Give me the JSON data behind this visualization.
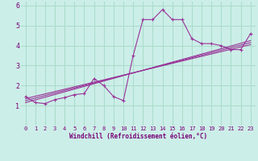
{
  "x": [
    0,
    1,
    2,
    3,
    4,
    5,
    6,
    7,
    8,
    9,
    10,
    11,
    12,
    13,
    14,
    15,
    16,
    17,
    18,
    19,
    20,
    21,
    22,
    23
  ],
  "y": [
    1.45,
    1.15,
    1.1,
    1.3,
    1.4,
    1.55,
    1.6,
    2.35,
    2.0,
    1.45,
    1.25,
    3.5,
    5.3,
    5.3,
    5.8,
    5.3,
    5.3,
    4.35,
    4.1,
    4.1,
    4.0,
    3.8,
    3.8,
    4.6
  ],
  "line_color": "#993399",
  "bg_color": "#cceee8",
  "grid_color": "#aaddcc",
  "text_color": "#770077",
  "xlabel": "Windchill (Refroidissement éolien,°C)",
  "xlim": [
    -0.5,
    23.5
  ],
  "ylim": [
    0,
    6.2
  ],
  "xticks": [
    0,
    1,
    2,
    3,
    4,
    5,
    6,
    7,
    8,
    9,
    10,
    11,
    12,
    13,
    14,
    15,
    16,
    17,
    18,
    19,
    20,
    21,
    22,
    23
  ],
  "yticks": [
    1,
    2,
    3,
    4,
    5,
    6
  ],
  "trend_lines": [
    {
      "x0": 0,
      "x1": 23,
      "y0": 1.35,
      "y1": 4.05
    },
    {
      "x0": 0,
      "x1": 23,
      "y0": 1.25,
      "y1": 4.15
    },
    {
      "x0": 0,
      "x1": 23,
      "y0": 1.15,
      "y1": 4.25
    }
  ]
}
